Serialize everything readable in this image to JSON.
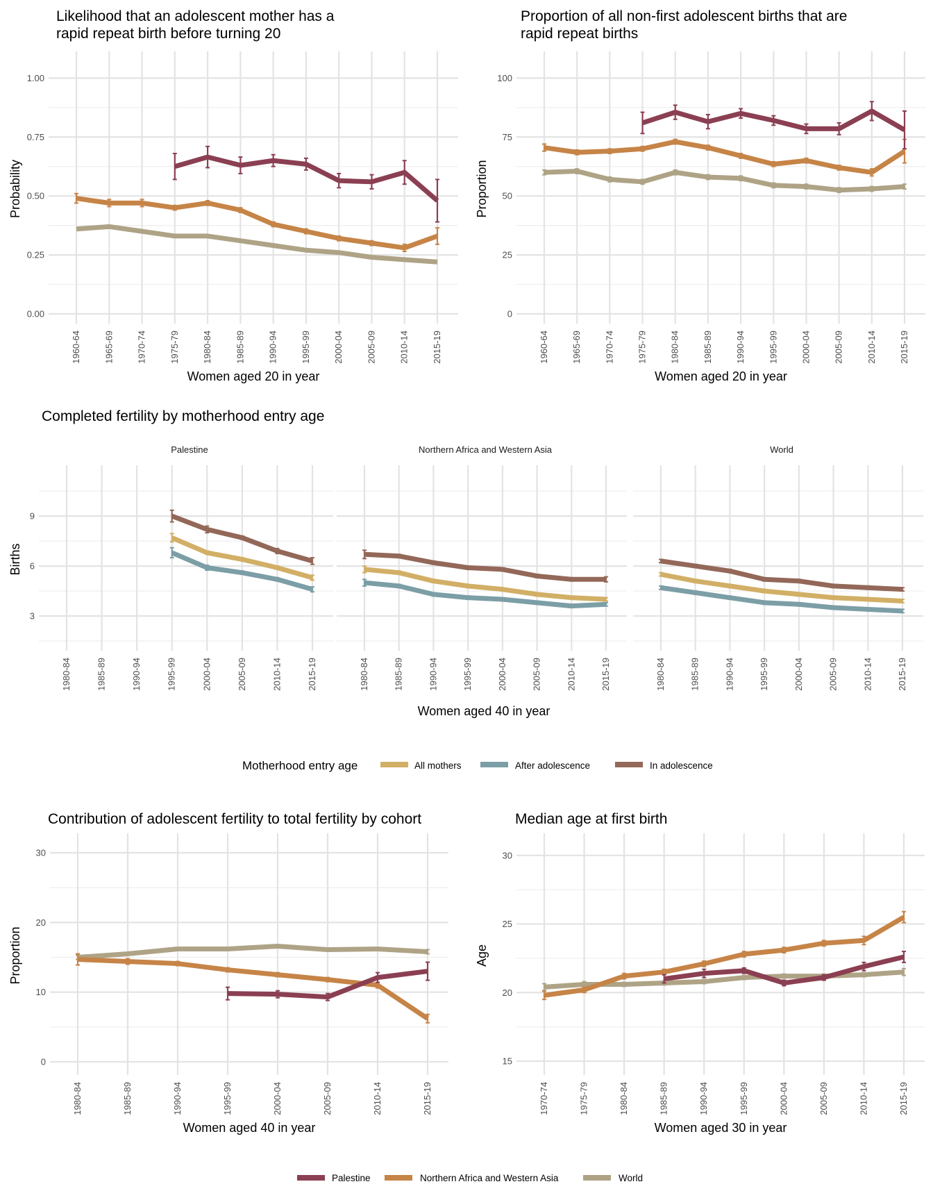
{
  "colors": {
    "Palestine": "#8B3F52",
    "Northern Africa and Western Asia": "#C68447",
    "World": "#AFA386",
    "All mothers": "#D2AF66",
    "After adolescence": "#7C9EA6",
    "In adolescence": "#936858"
  },
  "legends": {
    "entry": {
      "title": "Motherhood entry age",
      "items": [
        "All mothers",
        "After adolescence",
        "In adolescence"
      ]
    },
    "region": {
      "items": [
        "Palestine",
        "Northern Africa and Western Asia",
        "World"
      ]
    }
  },
  "fertility_title": "Completed fertility by motherhood entry age",
  "chart_data": [
    {
      "id": "rapid",
      "type": "line",
      "title": [
        "Likelihood that an adolescent mother has a",
        "rapid repeat birth before turning 20"
      ],
      "xlabel": "Women aged 20 in year",
      "ylabel": "Probability",
      "categories": [
        "1960-64",
        "1965-69",
        "1970-74",
        "1975-79",
        "1980-84",
        "1985-89",
        "1990-94",
        "1995-99",
        "2000-04",
        "2005-09",
        "2010-14",
        "2015-19"
      ],
      "ylim": [
        0,
        1.06
      ],
      "yticks": [
        0,
        0.25,
        0.5,
        0.75,
        1.0
      ],
      "ytick_labels": [
        "0.00",
        "0.25",
        "0.50",
        "0.75",
        "1.00"
      ],
      "series": [
        {
          "name": "World",
          "values": [
            0.36,
            0.37,
            0.35,
            0.33,
            0.33,
            0.31,
            0.29,
            0.27,
            0.26,
            0.24,
            0.23,
            0.22
          ]
        },
        {
          "name": "Northern Africa and Western Asia",
          "values": [
            0.49,
            0.47,
            0.47,
            0.45,
            0.47,
            0.44,
            0.38,
            0.35,
            0.32,
            0.3,
            0.28,
            0.33
          ],
          "error": [
            0.02,
            0.015,
            0.015,
            0.01,
            0.01,
            0.01,
            0.01,
            0.01,
            0.01,
            0.01,
            0.015,
            0.035
          ]
        },
        {
          "name": "Palestine",
          "values": [
            null,
            null,
            null,
            0.625,
            0.665,
            0.63,
            0.65,
            0.635,
            0.565,
            0.56,
            0.6,
            0.48
          ],
          "error": [
            null,
            null,
            null,
            0.055,
            0.045,
            0.035,
            0.025,
            0.025,
            0.03,
            0.03,
            0.05,
            0.09
          ]
        }
      ]
    },
    {
      "id": "proportion",
      "type": "line",
      "title": [
        "Proportion of all non-first adolescent births that are",
        "rapid repeat births"
      ],
      "xlabel": "Women aged 20 in year",
      "ylabel": "Proportion",
      "categories": [
        "1960-64",
        "1965-69",
        "1970-74",
        "1975-79",
        "1980-84",
        "1985-89",
        "1990-94",
        "1995-99",
        "2000-04",
        "2005-09",
        "2010-14",
        "2015-19"
      ],
      "ylim": [
        0,
        106
      ],
      "yticks": [
        0,
        25,
        50,
        75,
        100
      ],
      "ytick_labels": [
        "0",
        "25",
        "50",
        "75",
        "100"
      ],
      "series": [
        {
          "name": "World",
          "values": [
            60,
            60.5,
            57,
            56,
            60,
            58,
            57.5,
            54.5,
            54,
            52.5,
            53,
            54
          ],
          "error": [
            1,
            1,
            1,
            1,
            1,
            1,
            1,
            1,
            1,
            1,
            1,
            1
          ]
        },
        {
          "name": "Northern Africa and Western Asia",
          "values": [
            70.5,
            68.5,
            69,
            70,
            73,
            70.5,
            67,
            63.5,
            65,
            62,
            60,
            69
          ],
          "error": [
            1.5,
            1,
            1,
            1,
            1,
            1,
            1,
            1,
            1,
            1,
            1.5,
            5
          ]
        },
        {
          "name": "Palestine",
          "values": [
            null,
            null,
            null,
            81,
            85.5,
            81.5,
            85,
            82,
            78.5,
            78.5,
            86,
            78
          ],
          "error": [
            null,
            null,
            null,
            4.5,
            3,
            3,
            2,
            2,
            2,
            2.5,
            4,
            8
          ]
        }
      ]
    },
    {
      "id": "fertility",
      "type": "line",
      "xlabel": "Women aged 40 in year",
      "ylabel": "Births",
      "categories": [
        "1980-84",
        "1985-89",
        "1990-94",
        "1995-99",
        "2000-04",
        "2005-09",
        "2010-14",
        "2015-19"
      ],
      "ylim": [
        1.5,
        11.3
      ],
      "yticks": [
        3,
        6,
        9
      ],
      "ytick_labels": [
        "3",
        "6",
        "9"
      ],
      "facets": [
        {
          "title": "Palestine",
          "series": [
            {
              "name": "In adolescence",
              "values": [
                null,
                null,
                null,
                9.0,
                8.2,
                7.7,
                6.9,
                6.3
              ],
              "error": [
                null,
                null,
                null,
                0.35,
                0.2,
                0.1,
                0.15,
                0.2
              ]
            },
            {
              "name": "All mothers",
              "values": [
                null,
                null,
                null,
                7.7,
                6.8,
                6.4,
                5.9,
                5.3
              ],
              "error": [
                null,
                null,
                null,
                0.25,
                0.1,
                0.1,
                0.1,
                0.15
              ]
            },
            {
              "name": "After adolescence",
              "values": [
                null,
                null,
                null,
                6.8,
                5.9,
                5.6,
                5.2,
                4.6
              ],
              "error": [
                null,
                null,
                null,
                0.3,
                0.15,
                0.1,
                0.1,
                0.15
              ]
            }
          ]
        },
        {
          "title": "Northern Africa and Western Asia",
          "series": [
            {
              "name": "In adolescence",
              "values": [
                6.7,
                6.6,
                6.2,
                5.9,
                5.8,
                5.4,
                5.2,
                5.2
              ],
              "error": [
                0.25,
                0.1,
                0.1,
                0.1,
                0.1,
                0.1,
                0.1,
                0.15
              ]
            },
            {
              "name": "All mothers",
              "values": [
                5.8,
                5.6,
                5.1,
                4.8,
                4.6,
                4.3,
                4.1,
                4.0
              ],
              "error": [
                0.2,
                0.1,
                0.1,
                0.1,
                0.1,
                0.1,
                0.1,
                0.1
              ]
            },
            {
              "name": "After adolescence",
              "values": [
                5.0,
                4.8,
                4.3,
                4.1,
                4.0,
                3.8,
                3.6,
                3.7
              ],
              "error": [
                0.2,
                0.1,
                0.1,
                0.1,
                0.1,
                0.1,
                0.1,
                0.1
              ]
            }
          ]
        },
        {
          "title": "World",
          "series": [
            {
              "name": "In adolescence",
              "values": [
                6.3,
                6.0,
                5.7,
                5.2,
                5.1,
                4.8,
                4.7,
                4.6
              ],
              "error": [
                0.1,
                0.1,
                0.1,
                0.1,
                0.1,
                0.1,
                0.1,
                0.1
              ]
            },
            {
              "name": "All mothers",
              "values": [
                5.5,
                5.1,
                4.8,
                4.5,
                4.3,
                4.1,
                4.0,
                3.9
              ],
              "error": [
                0.1,
                0.1,
                0.1,
                0.1,
                0.1,
                0.1,
                0.1,
                0.1
              ]
            },
            {
              "name": "After adolescence",
              "values": [
                4.7,
                4.4,
                4.1,
                3.8,
                3.7,
                3.5,
                3.4,
                3.3
              ],
              "error": [
                0.1,
                0.1,
                0.1,
                0.1,
                0.1,
                0.1,
                0.1,
                0.1
              ]
            }
          ]
        }
      ]
    },
    {
      "id": "contribution",
      "type": "line",
      "title": [
        "Contribution of adolescent fertility to total fertility by cohort"
      ],
      "xlabel": "Women aged 40 in year",
      "ylabel": "Proportion",
      "categories": [
        "1980-84",
        "1985-89",
        "1990-94",
        "1995-99",
        "2000-04",
        "2005-09",
        "2010-14",
        "2015-19"
      ],
      "ylim": [
        -0.5,
        31
      ],
      "yticks": [
        0,
        10,
        20,
        30
      ],
      "ytick_labels": [
        "0",
        "10",
        "20",
        "30"
      ],
      "series": [
        {
          "name": "World",
          "values": [
            15,
            15.5,
            16.2,
            16.2,
            16.6,
            16.1,
            16.2,
            15.8
          ],
          "error": [
            0.3,
            0.2,
            0.2,
            0.2,
            0.2,
            0.2,
            0.2,
            0.3
          ]
        },
        {
          "name": "Northern Africa and Western Asia",
          "values": [
            14.7,
            14.4,
            14.1,
            13.2,
            12.5,
            11.8,
            11.0,
            6.2
          ],
          "error": [
            0.8,
            0.4,
            0.3,
            0.3,
            0.3,
            0.3,
            0.4,
            0.6
          ]
        },
        {
          "name": "Palestine",
          "values": [
            null,
            null,
            null,
            9.8,
            9.7,
            9.3,
            12.1,
            13.0
          ],
          "error": [
            null,
            null,
            null,
            0.9,
            0.5,
            0.5,
            0.7,
            1.3
          ]
        }
      ]
    },
    {
      "id": "median",
      "type": "line",
      "title": [
        "Median age at first birth"
      ],
      "xlabel": "Women aged 30 in year",
      "ylabel": "Age",
      "categories": [
        "1970-74",
        "1975-79",
        "1980-84",
        "1985-89",
        "1990-94",
        "1995-99",
        "2000-04",
        "2005-09",
        "2010-14",
        "2015-19"
      ],
      "ylim": [
        14.7,
        30.7
      ],
      "yticks": [
        15,
        20,
        25,
        30
      ],
      "ytick_labels": [
        "15",
        "20",
        "25",
        "30"
      ],
      "series": [
        {
          "name": "World",
          "values": [
            20.4,
            20.6,
            20.6,
            20.7,
            20.8,
            21.1,
            21.2,
            21.2,
            21.3,
            21.5
          ],
          "error": [
            0.25,
            0.2,
            0.15,
            0.15,
            0.15,
            0.15,
            0.15,
            0.15,
            0.15,
            0.25
          ]
        },
        {
          "name": "Northern Africa and Western Asia",
          "values": [
            19.8,
            20.2,
            21.2,
            21.5,
            22.1,
            22.8,
            23.1,
            23.6,
            23.8,
            25.5
          ],
          "error": [
            0.3,
            0.2,
            0.2,
            0.2,
            0.2,
            0.2,
            0.2,
            0.2,
            0.3,
            0.4
          ]
        },
        {
          "name": "Palestine",
          "values": [
            null,
            null,
            null,
            21.0,
            21.4,
            21.6,
            20.7,
            21.1,
            21.9,
            22.6
          ],
          "error": [
            null,
            null,
            null,
            0.3,
            0.3,
            0.2,
            0.2,
            0.2,
            0.3,
            0.4
          ]
        }
      ]
    }
  ]
}
